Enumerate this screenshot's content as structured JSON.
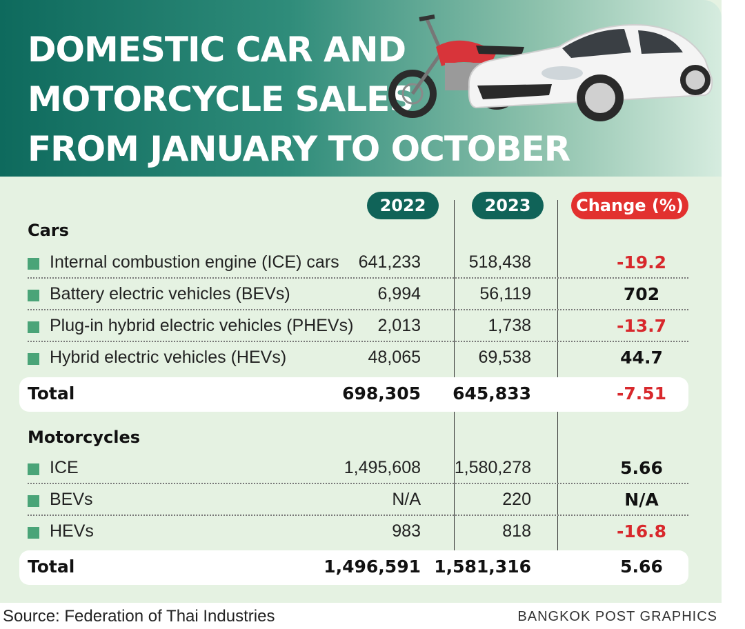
{
  "title_lines": [
    "DOMESTIC CAR AND",
    "MOTORCYCLE SALES",
    "FROM JANUARY TO OCTOBER"
  ],
  "columns": {
    "y2022": "2022",
    "y2023": "2023",
    "change": "Change (%)"
  },
  "cars": {
    "heading": "Cars",
    "rows": [
      {
        "label": "Internal combustion engine (ICE) cars",
        "y2022": "641,233",
        "y2023": "518,438",
        "change": "-19.2",
        "negative": true
      },
      {
        "label": "Battery electric vehicles (BEVs)",
        "y2022": "6,994",
        "y2023": "56,119",
        "change": "702",
        "negative": false
      },
      {
        "label": "Plug-in hybrid electric vehicles (PHEVs)",
        "y2022": "2,013",
        "y2023": "1,738",
        "change": "-13.7",
        "negative": true
      },
      {
        "label": "Hybrid electric vehicles (HEVs)",
        "y2022": "48,065",
        "y2023": "69,538",
        "change": "44.7",
        "negative": false
      }
    ],
    "total": {
      "label": "Total",
      "y2022": "698,305",
      "y2023": "645,833",
      "change": "-7.51",
      "negative": true
    }
  },
  "motorcycles": {
    "heading": "Motorcycles",
    "rows": [
      {
        "label": "ICE",
        "y2022": "1,495,608",
        "y2023": "1,580,278",
        "change": "5.66",
        "negative": false
      },
      {
        "label": "BEVs",
        "y2022": "N/A",
        "y2023": "220",
        "change": "N/A",
        "negative": false
      },
      {
        "label": "HEVs",
        "y2022": "983",
        "y2023": "818",
        "change": "-16.8",
        "negative": true
      }
    ],
    "total": {
      "label": "Total",
      "y2022": "1,496,591",
      "y2023": "1,581,316",
      "change": "5.66",
      "negative": false
    }
  },
  "source": "Source: Federation of Thai Industries",
  "credit": "BANGKOK POST GRAPHICS",
  "colors": {
    "header_dark": "#0e6a5d",
    "panel_bg": "#e5f2e2",
    "pill_year": "#106358",
    "pill_change": "#e2312f",
    "negative": "#d8282c",
    "bullet": "#4aa478"
  },
  "chart_data": {
    "type": "table",
    "columns": [
      "2022",
      "2023",
      "Change (%)"
    ],
    "groups": [
      {
        "name": "Cars",
        "rows": [
          {
            "label": "Internal combustion engine (ICE) cars",
            "values": [
              641233,
              518438,
              -19.2
            ]
          },
          {
            "label": "Battery electric vehicles (BEVs)",
            "values": [
              6994,
              56119,
              702
            ]
          },
          {
            "label": "Plug-in hybrid electric vehicles (PHEVs)",
            "values": [
              2013,
              1738,
              -13.7
            ]
          },
          {
            "label": "Hybrid electric vehicles (HEVs)",
            "values": [
              48065,
              69538,
              44.7
            ]
          },
          {
            "label": "Total",
            "values": [
              698305,
              645833,
              -7.51
            ]
          }
        ]
      },
      {
        "name": "Motorcycles",
        "rows": [
          {
            "label": "ICE",
            "values": [
              1495608,
              1580278,
              5.66
            ]
          },
          {
            "label": "BEVs",
            "values": [
              null,
              220,
              null
            ]
          },
          {
            "label": "HEVs",
            "values": [
              983,
              818,
              -16.8
            ]
          },
          {
            "label": "Total",
            "values": [
              1496591,
              1581316,
              5.66
            ]
          }
        ]
      }
    ]
  }
}
